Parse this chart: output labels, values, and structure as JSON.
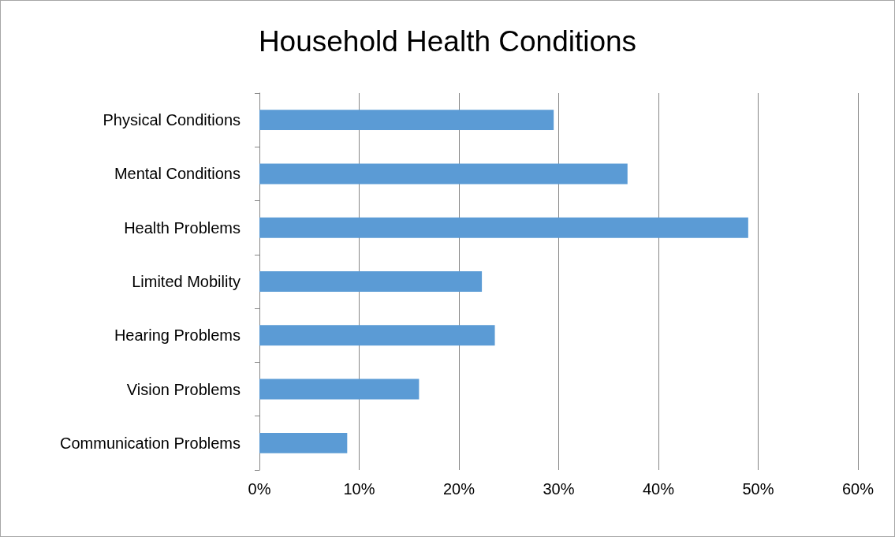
{
  "chart_data": {
    "type": "bar",
    "title": "Household Health Conditions",
    "orientation": "horizontal",
    "categories": [
      "Physical Conditions",
      "Mental Conditions",
      "Health Problems",
      "Limited Mobility",
      "Hearing Problems",
      "Vision Problems",
      "Communication Problems"
    ],
    "values": [
      29.5,
      36.9,
      49.0,
      22.3,
      23.6,
      16.0,
      8.8
    ],
    "color": "#5b9bd5",
    "xlim": [
      0,
      60
    ],
    "xticks": [
      {
        "value": 0,
        "label": "0%"
      },
      {
        "value": 10,
        "label": "10%"
      },
      {
        "value": 20,
        "label": "20%"
      },
      {
        "value": 30,
        "label": "30%"
      },
      {
        "value": 40,
        "label": "40%"
      },
      {
        "value": 50,
        "label": "50%"
      },
      {
        "value": 60,
        "label": "60%"
      }
    ],
    "grid": "x"
  }
}
